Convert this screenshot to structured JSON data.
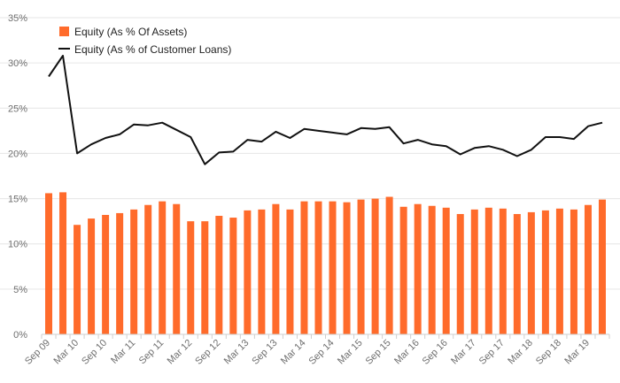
{
  "chart_data": {
    "type": "bar+line",
    "title": "",
    "xlabel": "",
    "ylabel": "",
    "ylim": [
      0,
      35
    ],
    "y_ticks": [
      "0%",
      "5%",
      "10%",
      "15%",
      "20%",
      "25%",
      "30%",
      "35%"
    ],
    "y_tick_values": [
      0,
      5,
      10,
      15,
      20,
      25,
      30,
      35
    ],
    "grid": true,
    "legend_position": "top-left",
    "categories": [
      "Sep 09",
      "Dec 09",
      "Mar 10",
      "Jun 10",
      "Sep 10",
      "Dec 10",
      "Mar 11",
      "Jun 11",
      "Sep 11",
      "Dec 11",
      "Mar 12",
      "Jun 12",
      "Sep 12",
      "Dec 12",
      "Mar 13",
      "Jun 13",
      "Sep 13",
      "Dec 13",
      "Mar 14",
      "Jun 14",
      "Sep 14",
      "Dec 14",
      "Mar 15",
      "Jun 15",
      "Sep 15",
      "Dec 15",
      "Mar 16",
      "Jun 16",
      "Sep 16",
      "Dec 16",
      "Mar 17",
      "Jun 17",
      "Sep 17",
      "Dec 17",
      "Mar 18",
      "Jun 18",
      "Sep 18",
      "Dec 18",
      "Mar 19",
      "Jun 19"
    ],
    "x_tick_labels": [
      "Sep 09",
      "Mar 10",
      "Sep 10",
      "Mar 11",
      "Sep 11",
      "Mar 12",
      "Sep 12",
      "Mar 13",
      "Sep 13",
      "Mar 14",
      "Sep 14",
      "Mar 15",
      "Sep 15",
      "Mar 16",
      "Sep 16",
      "Mar 17",
      "Sep 17",
      "Mar 18",
      "Sep 18",
      "Mar 19"
    ],
    "series": [
      {
        "name": "Equity (As % Of Assets)",
        "type": "bar",
        "color": "#ff6b2b",
        "values": [
          15.6,
          15.7,
          12.1,
          12.8,
          13.2,
          13.4,
          13.8,
          14.3,
          14.7,
          14.4,
          12.5,
          12.5,
          13.1,
          12.9,
          13.7,
          13.8,
          14.4,
          13.8,
          14.7,
          14.7,
          14.7,
          14.6,
          14.9,
          15.0,
          15.2,
          14.1,
          14.4,
          14.2,
          14.0,
          13.3,
          13.8,
          14.0,
          13.9,
          13.3,
          13.5,
          13.7,
          13.9,
          13.8,
          14.3,
          14.9
        ]
      },
      {
        "name": "Equity (As % of Customer Loans)",
        "type": "line",
        "color": "#111111",
        "values": [
          28.5,
          30.8,
          20.0,
          21.0,
          21.7,
          22.1,
          23.2,
          23.1,
          23.4,
          22.6,
          21.8,
          18.8,
          20.1,
          20.2,
          21.5,
          21.3,
          22.4,
          21.7,
          22.7,
          22.5,
          22.3,
          22.1,
          22.8,
          22.7,
          22.9,
          21.1,
          21.5,
          21.0,
          20.8,
          19.9,
          20.6,
          20.8,
          20.4,
          19.7,
          20.4,
          21.8,
          21.8,
          21.6,
          23.0,
          23.4
        ]
      }
    ]
  }
}
